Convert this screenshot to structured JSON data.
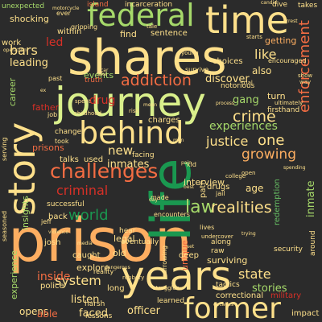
{
  "palette": {
    "background": "#2b2b2b",
    "dark_green": "#1a9850",
    "mid_green": "#66bd63",
    "light_green": "#a6d96a",
    "pale_green": "#d9ef8b",
    "cream": "#fee08b",
    "peach": "#fdae61",
    "orange": "#f46d43",
    "red": "#d73027"
  },
  "words": [
    {
      "text": "prison",
      "color": "#fdae61"
    },
    {
      "text": "life",
      "color": "#1a9850"
    },
    {
      "text": "shares",
      "color": "#fee08b"
    },
    {
      "text": "journey",
      "color": "#d9ef8b"
    },
    {
      "text": "years",
      "color": "#fee08b"
    },
    {
      "text": "federal",
      "color": "#a6d96a"
    },
    {
      "text": "time",
      "color": "#fee08b"
    },
    {
      "text": "behind",
      "color": "#fee08b"
    },
    {
      "text": "story",
      "color": "#fee08b"
    },
    {
      "text": "former",
      "color": "#fee08b"
    },
    {
      "text": "challenges",
      "color": "#f46d43"
    },
    {
      "text": "addiction",
      "color": "#f46d43"
    },
    {
      "text": "criminal",
      "color": "#d73027"
    },
    {
      "text": "world",
      "color": "#1a9850"
    },
    {
      "text": "law",
      "color": "#a6d96a"
    },
    {
      "text": "realities",
      "color": "#fee08b"
    },
    {
      "text": "crime",
      "color": "#fee08b"
    },
    {
      "text": "enforcement",
      "color": "#f46d43"
    },
    {
      "text": "one",
      "color": "#fee08b"
    },
    {
      "text": "justice",
      "color": "#fee08b"
    },
    {
      "text": "growing",
      "color": "#fdae61"
    },
    {
      "text": "experiences",
      "color": "#a6d96a"
    },
    {
      "text": "inmates",
      "color": "#fee08b"
    },
    {
      "text": "new",
      "color": "#fee08b"
    },
    {
      "text": "system",
      "color": "#fee08b"
    },
    {
      "text": "inside",
      "color": "#f46d43"
    },
    {
      "text": "state",
      "color": "#fee08b"
    },
    {
      "text": "stories",
      "color": "#a6d96a"
    },
    {
      "text": "officer",
      "color": "#fee08b"
    },
    {
      "text": "faced",
      "color": "#fee08b"
    },
    {
      "text": "discover",
      "color": "#fee08b"
    },
    {
      "text": "like",
      "color": "#fee08b"
    },
    {
      "text": "led",
      "color": "#d73027"
    },
    {
      "text": "bars",
      "color": "#fee08b"
    },
    {
      "text": "leading",
      "color": "#fee08b"
    },
    {
      "text": "story",
      "color": "#fee08b"
    },
    {
      "text": "shocking",
      "color": "#fee08b"
    },
    {
      "text": "unexpected",
      "color": "#a6d96a"
    },
    {
      "text": "career",
      "color": "#a6d96a"
    },
    {
      "text": "father",
      "color": "#d73027"
    },
    {
      "text": "prisons",
      "color": "#f46d43"
    },
    {
      "text": "events",
      "color": "#a6d96a"
    },
    {
      "text": "find",
      "color": "#fee08b"
    },
    {
      "text": "sentence",
      "color": "#fee08b"
    },
    {
      "text": "getting",
      "color": "#fdae61"
    },
    {
      "text": "encouraged",
      "color": "#fee08b"
    },
    {
      "text": "also",
      "color": "#fee08b"
    },
    {
      "text": "gang",
      "color": "#a6d96a"
    },
    {
      "text": "notorious",
      "color": "#fee08b"
    },
    {
      "text": "turn",
      "color": "#fee08b"
    },
    {
      "text": "redemption",
      "color": "#66bd63"
    },
    {
      "text": "inmate",
      "color": "#a6d96a"
    },
    {
      "text": "legal",
      "color": "#fee08b"
    },
    {
      "text": "explore",
      "color": "#fee08b"
    },
    {
      "text": "listen",
      "color": "#fee08b"
    },
    {
      "text": "unique",
      "color": "#f46d43"
    },
    {
      "text": "surviving",
      "color": "#fee08b"
    },
    {
      "text": "correctional",
      "color": "#fee08b"
    },
    {
      "text": "military",
      "color": "#d73027"
    },
    {
      "text": "impact",
      "color": "#fee08b"
    },
    {
      "text": "opens",
      "color": "#fee08b"
    },
    {
      "text": "able",
      "color": "#f46d43"
    },
    {
      "text": "harsh",
      "color": "#fee08b"
    },
    {
      "text": "lessons",
      "color": "#fee08b"
    },
    {
      "text": "police",
      "color": "#fee08b"
    },
    {
      "text": "insights",
      "color": "#a6d96a"
    },
    {
      "text": "experience",
      "color": "#a6d96a"
    },
    {
      "text": "successful",
      "color": "#fee08b"
    },
    {
      "text": "talks",
      "color": "#fee08b"
    },
    {
      "text": "used",
      "color": "#fee08b"
    },
    {
      "text": "drug",
      "color": "#d73027"
    },
    {
      "text": "interview",
      "color": "#fee08b"
    },
    {
      "text": "drugs",
      "color": "#fee08b"
    },
    {
      "text": "path",
      "color": "#fee08b"
    },
    {
      "text": "eventually",
      "color": "#fee08b"
    },
    {
      "text": "hear",
      "color": "#fee08b"
    },
    {
      "text": "old",
      "color": "#fee08b"
    },
    {
      "text": "deep",
      "color": "#fee08b"
    },
    {
      "text": "along",
      "color": "#fee08b"
    },
    {
      "text": "raw",
      "color": "#fee08b"
    },
    {
      "text": "charges",
      "color": "#fee08b"
    },
    {
      "text": "facing",
      "color": "#fee08b"
    },
    {
      "text": "made",
      "color": "#fee08b"
    },
    {
      "text": "change",
      "color": "#fee08b"
    },
    {
      "text": "took",
      "color": "#fee08b"
    },
    {
      "text": "job",
      "color": "#fee08b"
    },
    {
      "text": "work",
      "color": "#fee08b"
    },
    {
      "text": "within",
      "color": "#fee08b"
    },
    {
      "text": "island",
      "color": "#f46d43"
    },
    {
      "text": "incarceration",
      "color": "#fee08b"
    },
    {
      "text": "dive",
      "color": "#fee08b"
    },
    {
      "text": "takes",
      "color": "#fee08b"
    },
    {
      "text": "operation",
      "color": "#fee08b"
    },
    {
      "text": "choices",
      "color": "#fee08b"
    },
    {
      "text": "survive",
      "color": "#fee08b"
    },
    {
      "text": "young",
      "color": "#fee08b"
    },
    {
      "text": "truth",
      "color": "#f46d43"
    },
    {
      "text": "past",
      "color": "#fee08b"
    },
    {
      "text": "spent",
      "color": "#fee08b"
    },
    {
      "text": "way",
      "color": "#fee08b"
    },
    {
      "text": "show",
      "color": "#fee08b"
    },
    {
      "text": "ultimately",
      "color": "#fee08b"
    },
    {
      "text": "firsthand",
      "color": "#fee08b"
    },
    {
      "text": "starts",
      "color": "#fee08b"
    },
    {
      "text": "college",
      "color": "#fee08b"
    },
    {
      "text": "open",
      "color": "#fee08b"
    },
    {
      "text": "tactics",
      "color": "#fee08b"
    },
    {
      "text": "reality",
      "color": "#fee08b"
    },
    {
      "text": "learned",
      "color": "#fee08b"
    },
    {
      "text": "long",
      "color": "#fee08b"
    },
    {
      "text": "caught",
      "color": "#fee08b"
    },
    {
      "text": "back",
      "color": "#fee08b"
    },
    {
      "text": "josh",
      "color": "#fee08b"
    },
    {
      "text": "jeff",
      "color": "#fee08b"
    },
    {
      "text": "seasoned",
      "color": "#fee08b"
    },
    {
      "text": "serving",
      "color": "#fee08b"
    },
    {
      "text": "around",
      "color": "#fee08b"
    },
    {
      "text": "security",
      "color": "#fee08b"
    },
    {
      "text": "age",
      "color": "#fee08b"
    },
    {
      "text": "kid",
      "color": "#fee08b"
    },
    {
      "text": "jail",
      "color": "#fee08b"
    },
    {
      "text": "encounters",
      "color": "#fee08b"
    },
    {
      "text": "lives",
      "color": "#fee08b"
    },
    {
      "text": "trial",
      "color": "#fee08b"
    },
    {
      "text": "tale",
      "color": "#fee08b"
    },
    {
      "text": "risk",
      "color": "#fee08b"
    },
    {
      "text": "violence",
      "color": "#fee08b"
    },
    {
      "text": "childhood",
      "color": "#fee08b"
    },
    {
      "text": "gripping",
      "color": "#fee08b"
    },
    {
      "text": "ever",
      "color": "#fee08b"
    },
    {
      "text": "undercover",
      "color": "#fee08b"
    },
    {
      "text": "robbery",
      "color": "#fee08b"
    },
    {
      "text": "struggles",
      "color": "#fee08b"
    },
    {
      "text": "decades",
      "color": "#fee08b"
    },
    {
      "text": "harrowing",
      "color": "#fee08b"
    },
    {
      "text": "media",
      "color": "#fee08b"
    },
    {
      "text": "pain",
      "color": "#fee08b"
    },
    {
      "text": "take",
      "color": "#fee08b"
    },
    {
      "text": "car",
      "color": "#fee08b"
    },
    {
      "text": "candid",
      "color": "#fee08b"
    },
    {
      "text": "arrest",
      "color": "#fee08b"
    },
    {
      "text": "dangerous",
      "color": "#fee08b"
    },
    {
      "text": "spending",
      "color": "#fee08b"
    },
    {
      "text": "process",
      "color": "#fee08b"
    },
    {
      "text": "motorcycle",
      "color": "#fee08b"
    },
    {
      "text": "mean",
      "color": "#fee08b"
    },
    {
      "text": "day",
      "color": "#fee08b"
    },
    {
      "text": "set",
      "color": "#fee08b"
    },
    {
      "text": "ex",
      "color": "#fee08b"
    },
    {
      "text": "best",
      "color": "#fee08b"
    },
    {
      "text": "trying",
      "color": "#fee08b"
    },
    {
      "text": "man",
      "color": "#fee08b"
    }
  ]
}
